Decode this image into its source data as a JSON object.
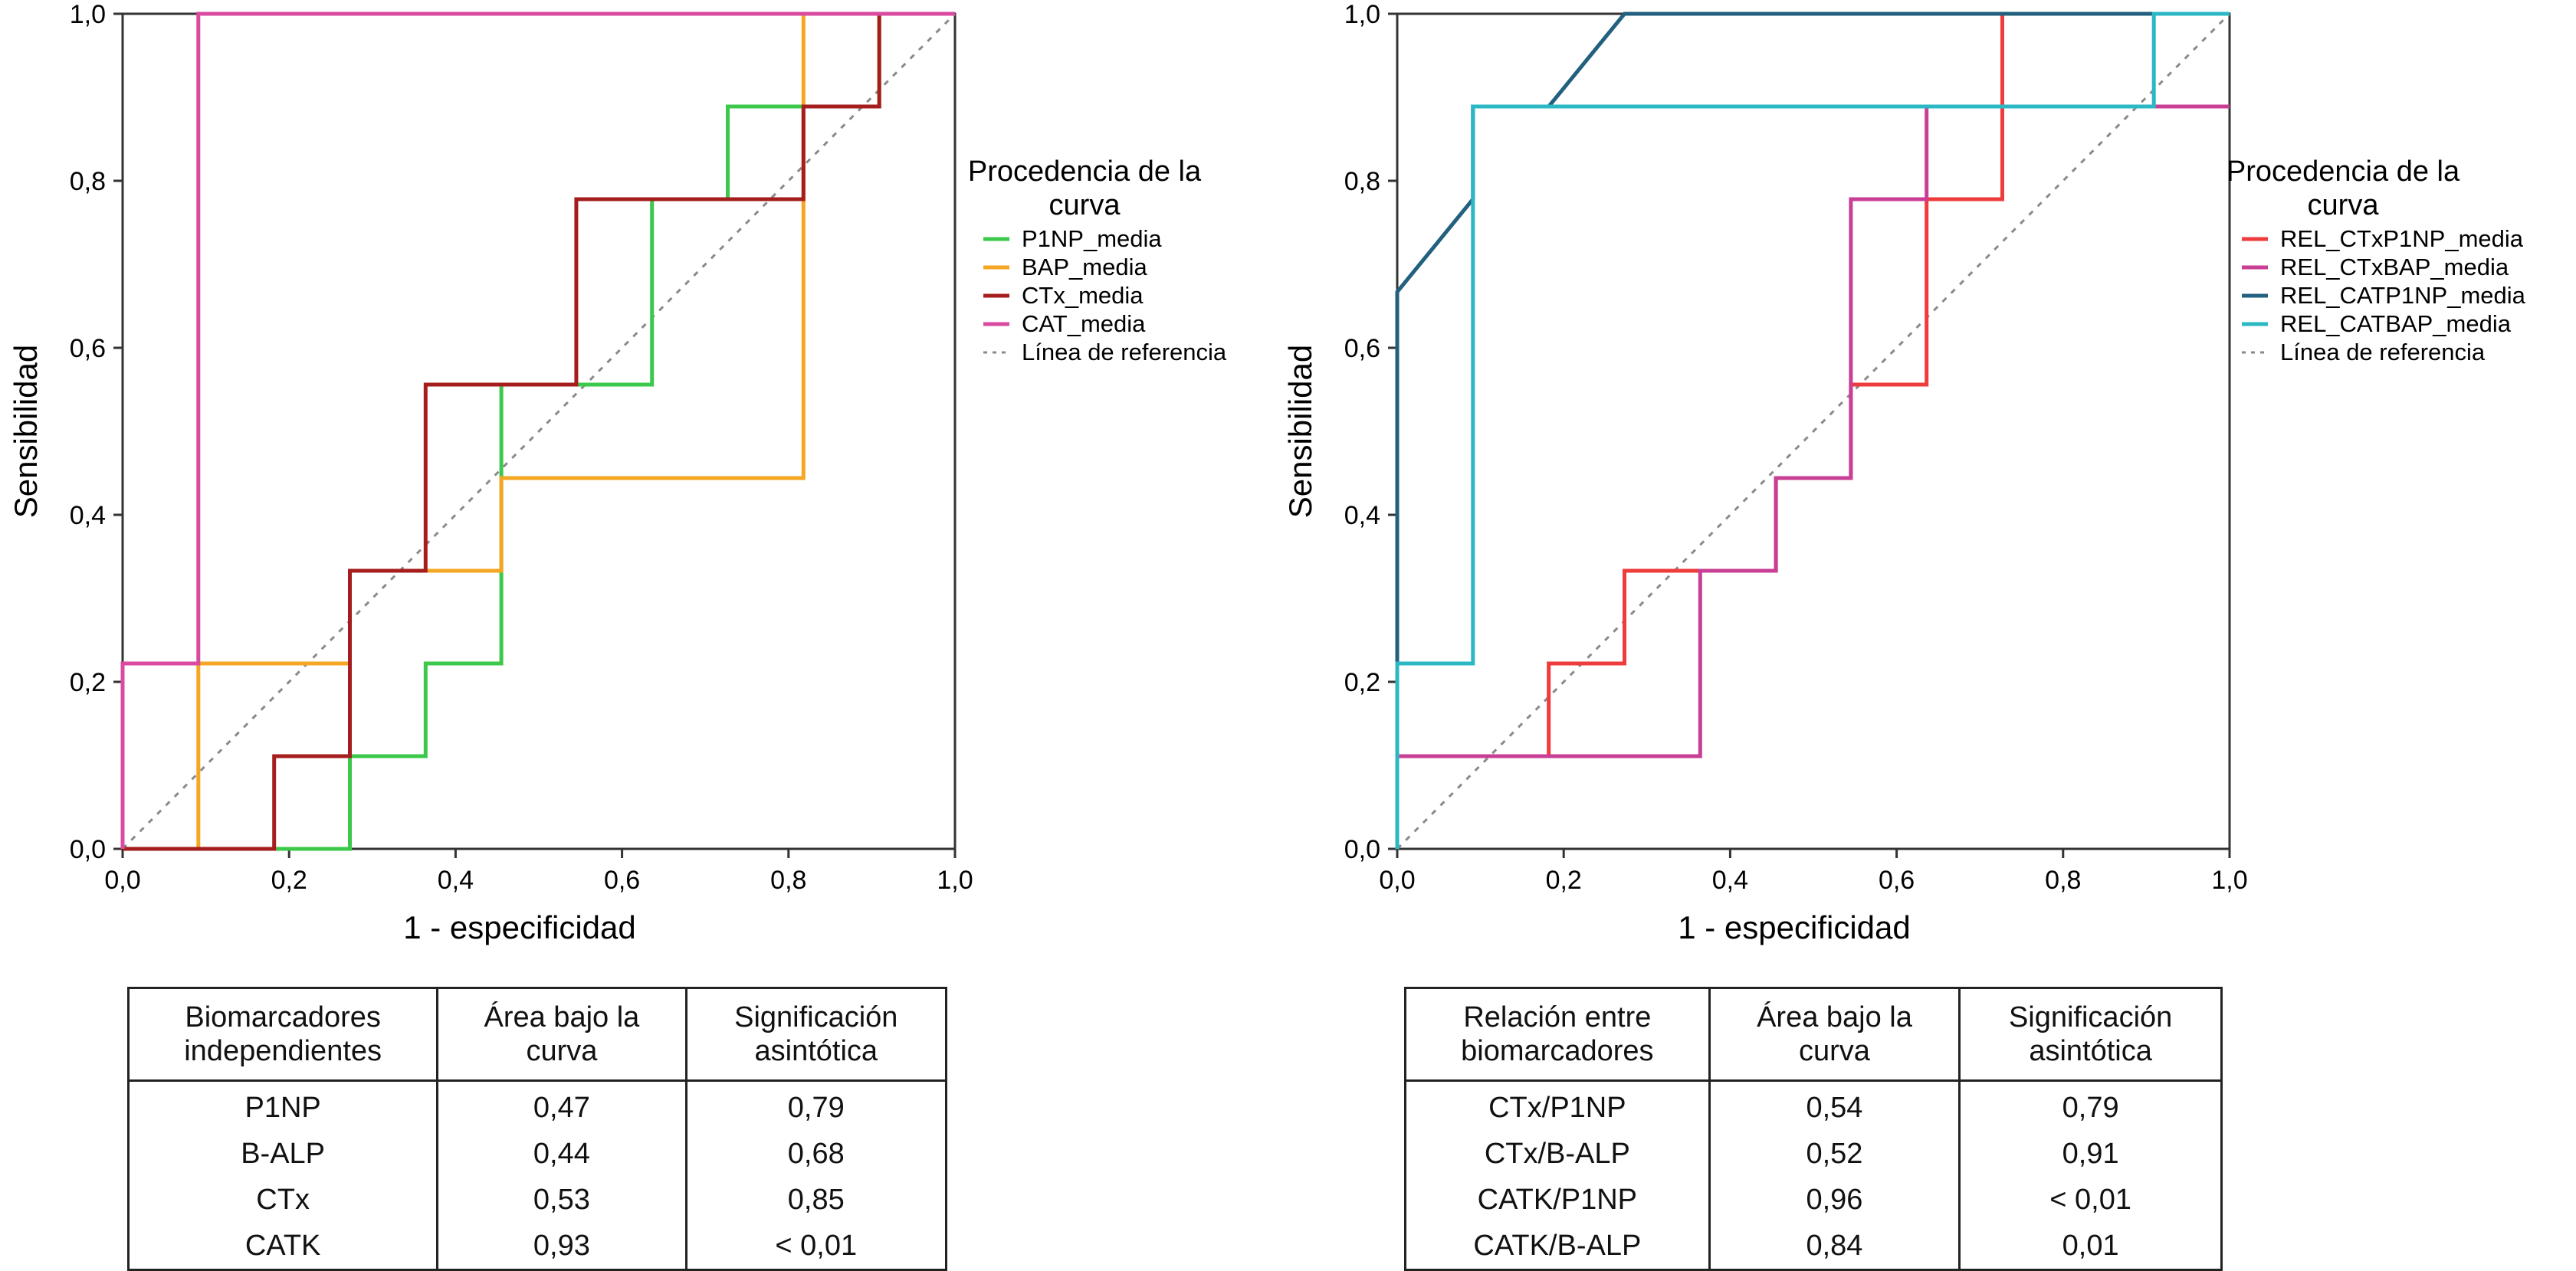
{
  "chart_data": [
    {
      "type": "line",
      "xlabel": "1 - especificidad",
      "ylabel": "Sensibilidad",
      "xlim": [
        0,
        1
      ],
      "ylim": [
        0,
        1
      ],
      "x_ticks": [
        "0,0",
        "0,2",
        "0,4",
        "0,6",
        "0,8",
        "1,0"
      ],
      "y_ticks": [
        "0,0",
        "0,2",
        "0,4",
        "0,6",
        "0,8",
        "1,0"
      ],
      "legend": {
        "title_lines": [
          "Procedencia de la",
          "curva"
        ],
        "placement": "right",
        "reference_label": "Línea de referencia"
      },
      "series": [
        {
          "name": "P1NP_media",
          "color": "#3cc84a",
          "x": [
            0,
            0.273,
            0.273,
            0.364,
            0.364,
            0.455,
            0.455,
            0.545,
            0.545,
            0.636,
            0.636,
            0.727,
            0.727,
            0.818,
            0.818,
            0.909,
            0.909,
            1.0
          ],
          "y": [
            0,
            0,
            0.111,
            0.111,
            0.222,
            0.222,
            0.556,
            0.556,
            0.556,
            0.556,
            0.778,
            0.778,
            0.889,
            0.889,
            0.889,
            0.889,
            1.0,
            1.0
          ]
        },
        {
          "name": "BAP_media",
          "color": "#f5a623",
          "x": [
            0,
            0.091,
            0.091,
            0.273,
            0.273,
            0.455,
            0.455,
            0.818,
            0.818,
            1.0
          ],
          "y": [
            0,
            0,
            0.222,
            0.222,
            0.333,
            0.333,
            0.444,
            0.444,
            1.0,
            1.0
          ]
        },
        {
          "name": "CTx_media",
          "color": "#a51d1d",
          "x": [
            0,
            0.182,
            0.182,
            0.273,
            0.273,
            0.364,
            0.364,
            0.545,
            0.545,
            0.818,
            0.818,
            0.909,
            0.909,
            1.0
          ],
          "y": [
            0,
            0,
            0.111,
            0.111,
            0.333,
            0.333,
            0.556,
            0.556,
            0.778,
            0.778,
            0.889,
            0.889,
            1.0,
            1.0
          ]
        },
        {
          "name": "CAT_media",
          "color": "#d94aa0",
          "x": [
            0,
            0,
            0.091,
            0.091,
            1.0
          ],
          "y": [
            0,
            0.222,
            0.222,
            1.0,
            1.0
          ]
        }
      ],
      "table": {
        "headers": [
          [
            "Biomarcadores",
            "independientes"
          ],
          [
            "Área bajo la",
            "curva"
          ],
          [
            "Significación",
            "asintótica"
          ]
        ],
        "rows": [
          [
            "P1NP",
            "0,47",
            "0,79"
          ],
          [
            "B-ALP",
            "0,44",
            "0,68"
          ],
          [
            "CTx",
            "0,53",
            "0,85"
          ],
          [
            "CATK",
            "0,93",
            "< 0,01"
          ]
        ]
      }
    },
    {
      "type": "line",
      "xlabel": "1 - especificidad",
      "ylabel": "Sensibilidad",
      "xlim": [
        0,
        1
      ],
      "ylim": [
        0,
        1
      ],
      "x_ticks": [
        "0,0",
        "0,2",
        "0,4",
        "0,6",
        "0,8",
        "1,0"
      ],
      "y_ticks": [
        "0,0",
        "0,2",
        "0,4",
        "0,6",
        "0,8",
        "1,0"
      ],
      "legend": {
        "title_lines": [
          "Procedencia de la",
          "curva"
        ],
        "placement": "right",
        "reference_label": "Línea de referencia"
      },
      "series": [
        {
          "name": "REL_CTxP1NP_media",
          "color": "#ee3b3b",
          "x": [
            0,
            0.182,
            0.182,
            0.273,
            0.273,
            0.364,
            0.364,
            0.455,
            0.455,
            0.545,
            0.545,
            0.636,
            0.636,
            0.727,
            0.727,
            1.0
          ],
          "y": [
            0.111,
            0.111,
            0.222,
            0.222,
            0.333,
            0.333,
            0.333,
            0.333,
            0.444,
            0.444,
            0.556,
            0.556,
            0.778,
            0.778,
            1.0,
            1.0
          ]
        },
        {
          "name": "REL_CTxBAP_media",
          "color": "#c93f96",
          "x": [
            0,
            0.364,
            0.364,
            0.455,
            0.455,
            0.545,
            0.545,
            0.636,
            0.636,
            1.0
          ],
          "y": [
            0.111,
            0.111,
            0.333,
            0.333,
            0.444,
            0.444,
            0.778,
            0.778,
            0.889,
            0.889
          ]
        },
        {
          "name": "REL_CATP1NP_media",
          "color": "#21607e",
          "x": [
            0,
            0,
            0.091,
            0.091,
            0.182,
            0.273,
            1.0
          ],
          "y": [
            0,
            0.667,
            0.778,
            0.889,
            0.889,
            1.0,
            1.0
          ]
        },
        {
          "name": "REL_CATBAP_media",
          "color": "#2bb8c4",
          "x": [
            0,
            0,
            0.091,
            0.091,
            0.909,
            0.909,
            1.0
          ],
          "y": [
            0,
            0.222,
            0.222,
            0.889,
            0.889,
            1.0,
            1.0
          ]
        }
      ],
      "table": {
        "headers": [
          [
            "Relación entre",
            "biomarcadores"
          ],
          [
            "Área bajo la",
            "curva"
          ],
          [
            "Significación",
            "asintótica"
          ]
        ],
        "rows": [
          [
            "CTx/P1NP",
            "0,54",
            "0,79"
          ],
          [
            "CTx/B-ALP",
            "0,52",
            "0,91"
          ],
          [
            "CATK/P1NP",
            "0,96",
            "< 0,01"
          ],
          [
            "CATK/B-ALP",
            "0,84",
            "0,01"
          ]
        ]
      }
    }
  ]
}
